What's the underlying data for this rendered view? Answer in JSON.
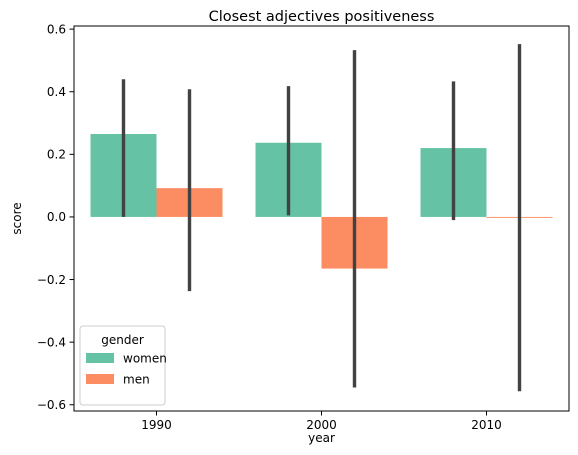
{
  "chart_data": {
    "type": "bar",
    "title": "Closest adjectives positiveness",
    "xlabel": "year",
    "ylabel": "score",
    "categories": [
      "1990",
      "2000",
      "2010"
    ],
    "ylim": [
      -0.62,
      0.61
    ],
    "yticks": [
      -0.6,
      -0.4,
      -0.2,
      0.0,
      0.2,
      0.4,
      0.6
    ],
    "ytick_labels": [
      "−0.6",
      "−0.4",
      "−0.2",
      "0.0",
      "0.2",
      "0.4",
      "0.6"
    ],
    "grid": false,
    "legend": {
      "title": "gender",
      "position": "lower-left"
    },
    "series": [
      {
        "name": "women",
        "color": "#66c2a5",
        "values": [
          0.265,
          0.237,
          0.22
        ],
        "ci_low": [
          0.0,
          0.005,
          -0.01
        ],
        "ci_high": [
          0.44,
          0.418,
          0.433
        ]
      },
      {
        "name": "men",
        "color": "#fc8d62",
        "values": [
          0.092,
          -0.165,
          -0.003
        ],
        "ci_low": [
          -0.237,
          -0.545,
          -0.557
        ],
        "ci_high": [
          0.408,
          0.533,
          0.552
        ]
      }
    ],
    "errorbar_color": "#424242"
  }
}
